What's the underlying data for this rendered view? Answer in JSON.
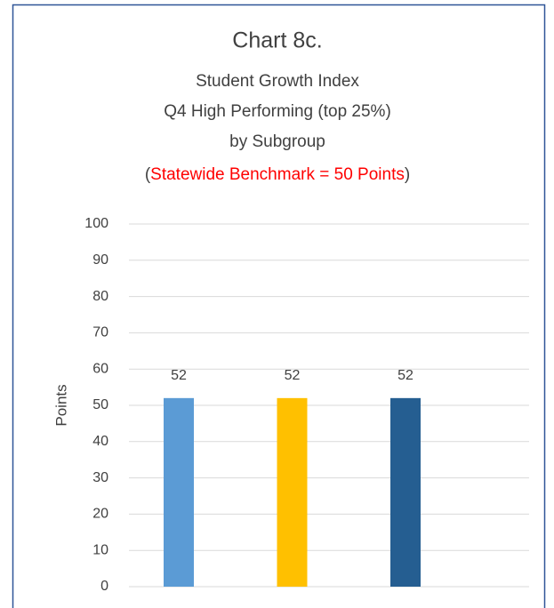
{
  "chart_data": {
    "type": "bar",
    "title": "Chart 8c.",
    "subtitle": [
      "Student Growth Index",
      "Q4 High Performing (top 25%)",
      "by Subgroup"
    ],
    "note": [
      "(",
      "Statewide Benchmark = 50 Points",
      ")"
    ],
    "note_colors": [
      "#404040",
      "#ff0000",
      "#404040"
    ],
    "y_label": "Points",
    "categories": [
      null,
      null,
      null
    ],
    "values": [
      52,
      52,
      52
    ],
    "colors": [
      "#5b9bd5",
      "#ffc000",
      "#255e91"
    ],
    "ylim": [
      0,
      100
    ],
    "yticks": [
      0,
      10,
      20,
      30,
      40,
      50,
      60,
      70,
      80,
      90,
      100
    ],
    "grid": true
  }
}
